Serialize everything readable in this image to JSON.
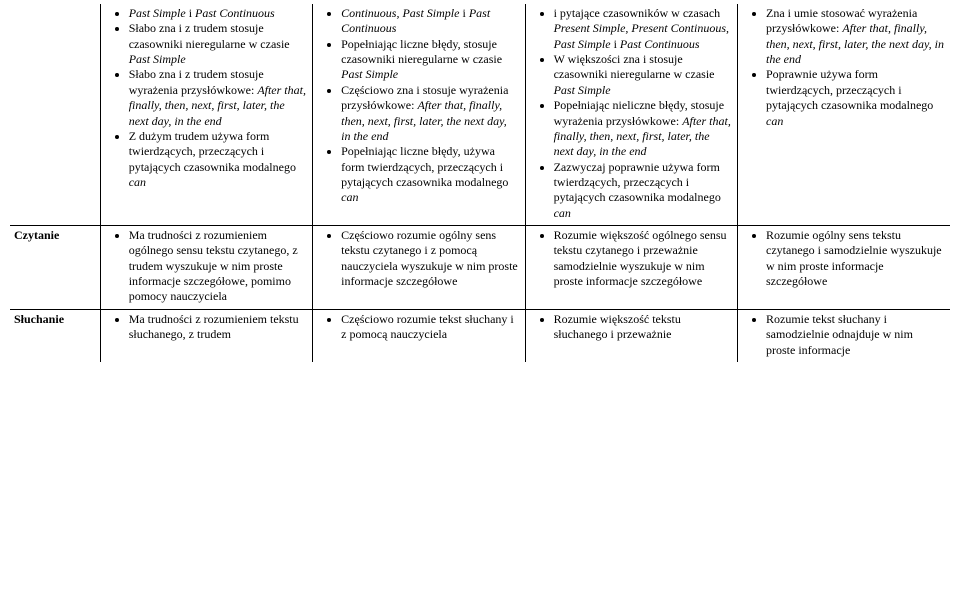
{
  "colWidths": [
    "90px",
    "212px",
    "212px",
    "212px",
    "212px"
  ],
  "rowLabels": {
    "r1": "",
    "r2": "Czytanie",
    "r3": "Słuchanie"
  },
  "cells": {
    "r1c2": [
      {
        "pre": "",
        "it": "Past Simple",
        "mid": " i ",
        "it2": "Past Continuous"
      },
      {
        "pre": "Słabo zna i z trudem stosuje czasowniki nieregularne w czasie ",
        "it": "Past Simple"
      },
      {
        "pre": "Słabo zna i z trudem stosuje wyrażenia przysłówkowe: ",
        "it": "After that, finally, then, next, first, later, the next day, in the end"
      },
      {
        "pre": "Z dużym trudem używa form twierdzących, przeczących i pytających czasownika modalnego ",
        "it": "can"
      }
    ],
    "r1c3": [
      {
        "pre": "",
        "it": "Continuous, Past Simple",
        "mid": " i ",
        "it2": "Past Continuous"
      },
      {
        "pre": "Popełniając liczne błędy, stosuje czasowniki nieregularne w czasie ",
        "it": "Past Simple"
      },
      {
        "pre": "Częściowo zna i stosuje wyrażenia przysłówkowe: ",
        "it": "After that, finally, then, next, first, later, the next day, in the end"
      },
      {
        "pre": "Popełniając liczne błędy, używa form twierdzących, przeczących i pytających czasownika modalnego ",
        "it": "can"
      }
    ],
    "r1c4": [
      {
        "pre": "i pytające czasowników w czasach ",
        "it": "Present Simple, Present Continuous, Past Simple",
        "mid": " i ",
        "it2": "Past Continuous"
      },
      {
        "pre": "W większości zna i stosuje czasowniki nieregularne w czasie ",
        "it": "Past Simple"
      },
      {
        "pre": "Popełniając nieliczne błędy, stosuje wyrażenia przysłówkowe: ",
        "it": "After that, finally, then, next, first, later, the next day, in the end"
      },
      {
        "pre": "Zazwyczaj poprawnie używa form twierdzących, przeczących i pytających czasownika modalnego ",
        "it": "can"
      }
    ],
    "r1c5": [
      {
        "pre": "Zna i umie stosować wyrażenia przysłówkowe: ",
        "it": "After that, finally, then, next, first, later, the next day, in the end"
      },
      {
        "pre": "Poprawnie używa form twierdzących, przeczących i pytających czasownika modalnego ",
        "it": "can"
      }
    ],
    "r2c2": [
      {
        "pre": "Ma trudności z rozumieniem ogólnego sensu tekstu czytanego, z trudem wyszukuje w nim proste informacje szczegółowe, pomimo pomocy nauczyciela"
      }
    ],
    "r2c3": [
      {
        "pre": "Częściowo rozumie ogólny sens tekstu czytanego i z pomocą nauczyciela wyszukuje w nim proste informacje szczegółowe"
      }
    ],
    "r2c4": [
      {
        "pre": "Rozumie większość ogólnego sensu tekstu czytanego i przeważnie samodzielnie wyszukuje w nim proste informacje szczegółowe"
      }
    ],
    "r2c5": [
      {
        "pre": "Rozumie ogólny sens tekstu czytanego i samodzielnie wyszukuje w nim proste informacje szczegółowe"
      }
    ],
    "r3c2": [
      {
        "pre": "Ma trudności z rozumieniem tekstu słuchanego, z trudem"
      }
    ],
    "r3c3": [
      {
        "pre": "Częściowo rozumie tekst słuchany i z pomocą nauczyciela"
      }
    ],
    "r3c4": [
      {
        "pre": "Rozumie większość tekstu słuchanego i przeważnie"
      }
    ],
    "r3c5": [
      {
        "pre": "Rozumie tekst słuchany i samodzielnie odnajduje w nim proste informacje"
      }
    ]
  }
}
